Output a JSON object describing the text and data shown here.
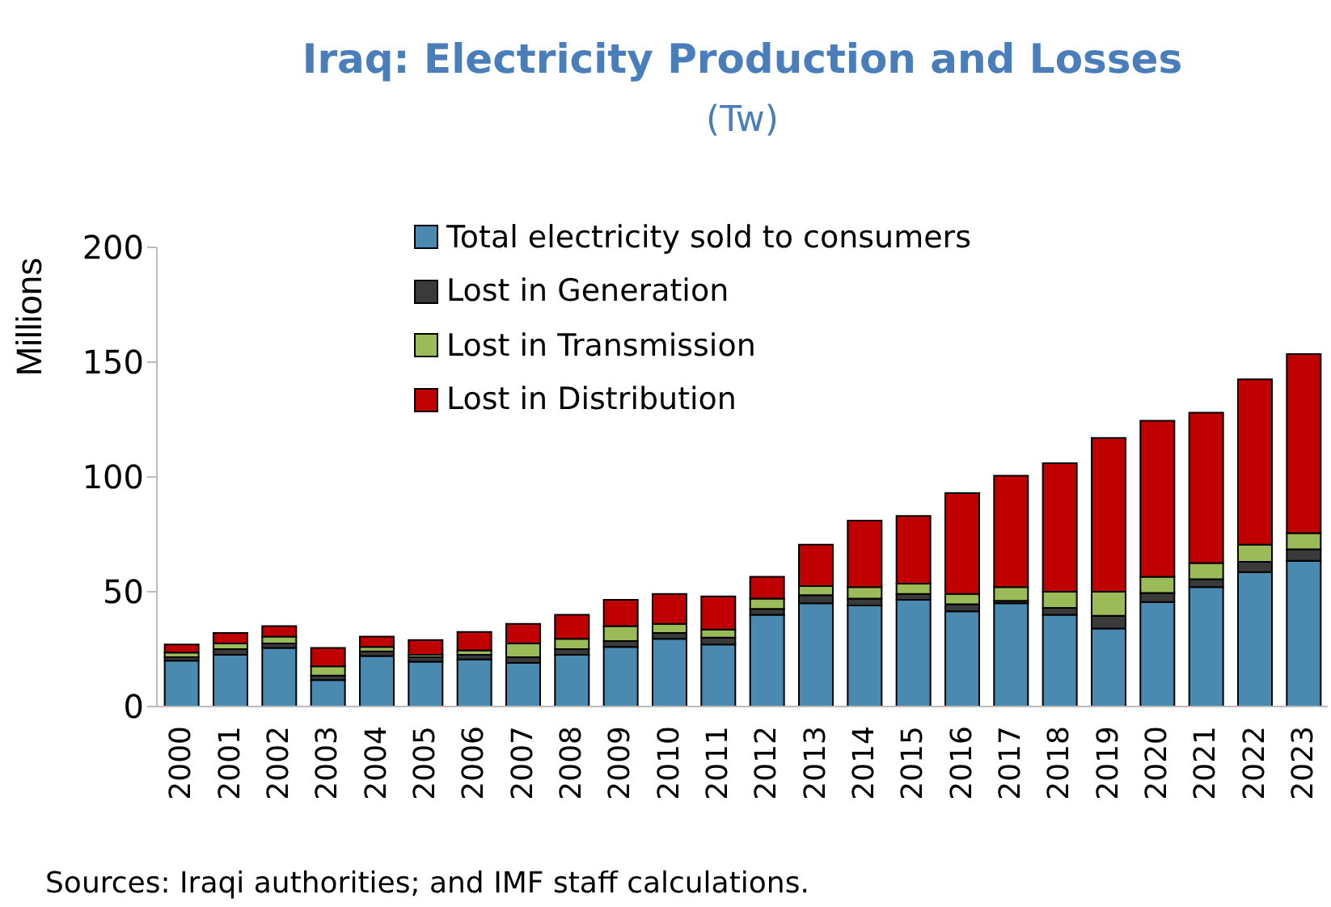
{
  "chart_data": {
    "type": "bar",
    "title": "Iraq: Electricity Production and Losses",
    "subtitle": "(Tw)",
    "ylabel": "Millions",
    "categories": [
      "2000",
      "2001",
      "2002",
      "2003",
      "2004",
      "2005",
      "2006",
      "2007",
      "2008",
      "2009",
      "2010",
      "2011",
      "2012",
      "2013",
      "2014",
      "2015",
      "2016",
      "2017",
      "2018",
      "2019",
      "2020",
      "2021",
      "2022",
      "2023"
    ],
    "series": [
      {
        "name": "Total electricity sold to consumers",
        "color": "#4a89b0",
        "values": [
          20,
          22.5,
          25.5,
          11.5,
          22,
          19.5,
          20.5,
          19,
          22.5,
          26,
          29.5,
          27,
          40,
          45,
          44,
          46.5,
          41.5,
          45,
          40,
          34,
          45.5,
          52,
          58.5,
          63.5
        ]
      },
      {
        "name": "Lost in Generation",
        "color": "#3a3a3a",
        "values": [
          1.5,
          2.5,
          2,
          2,
          2,
          2,
          2,
          2.5,
          2.5,
          2.5,
          2.5,
          3,
          2.5,
          3.5,
          3,
          2.5,
          3,
          1,
          3,
          5.5,
          4,
          3.5,
          4.5,
          5
        ]
      },
      {
        "name": "Lost in Transmission",
        "color": "#9bbb59",
        "values": [
          2,
          2.5,
          3,
          4,
          2,
          1,
          2,
          6,
          4.5,
          6.5,
          4,
          3.5,
          4.5,
          4,
          5,
          4.5,
          4.5,
          6,
          7,
          10.5,
          7,
          7,
          7.5,
          7
        ]
      },
      {
        "name": "Lost in Distribution",
        "color": "#c00000",
        "values": [
          3.5,
          4.5,
          4.5,
          8,
          4.5,
          6.5,
          8,
          8.5,
          10.5,
          11.5,
          13,
          14.5,
          9.5,
          18,
          29,
          29.5,
          44,
          48.5,
          56,
          67,
          68,
          65.5,
          72,
          78
        ]
      }
    ],
    "stacked": true,
    "ylim": [
      0,
      200
    ],
    "yticks": [
      0,
      50,
      100,
      150,
      200
    ],
    "grid": false,
    "legend": "top left",
    "annotations": [
      "Sources: Iraqi authorities; and IMF staff calculations."
    ]
  }
}
